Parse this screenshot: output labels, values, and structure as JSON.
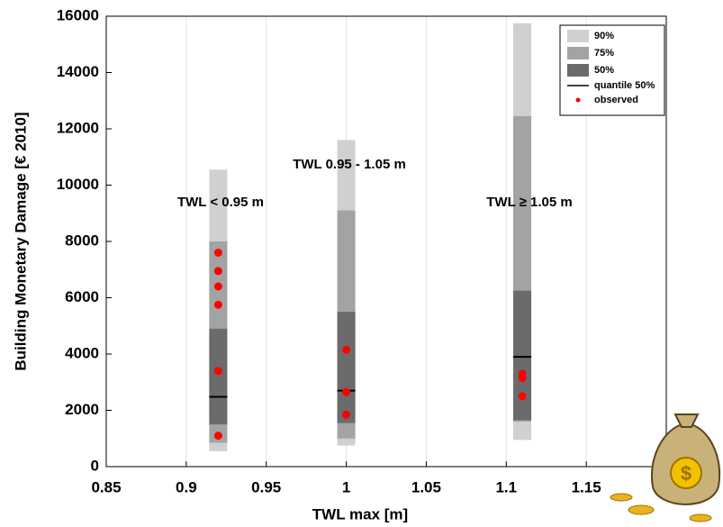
{
  "chart_data": {
    "type": "interval",
    "x_label": "TWL max [m]",
    "y_label": "Building Monetary Damage [€ 2010]",
    "xlim": [
      0.85,
      1.2
    ],
    "ylim": [
      0,
      16000
    ],
    "xticks": [
      0.85,
      0.9,
      0.95,
      1,
      1.05,
      1.1,
      1.15
    ],
    "yticks": [
      0,
      2000,
      4000,
      6000,
      8000,
      10000,
      12000,
      14000,
      16000
    ],
    "grid": "x",
    "legend_position": "upper right",
    "bands": [
      {
        "name": "90%",
        "color": "#d0d0d0"
      },
      {
        "name": "75%",
        "color": "#a3a3a3"
      },
      {
        "name": "50%",
        "color": "#6b6b6b"
      }
    ],
    "median_name": "quantile 50%",
    "median_color": "#000000",
    "observed_name": "observed",
    "observed_color": "#ff0000",
    "annotations": [
      "TWL < 0.95 m",
      "TWL 0.95 - 1.05 m",
      "TWL ≥ 1.05 m"
    ],
    "groups": [
      {
        "x": 0.92,
        "intervals": [
          [
            550,
            10550
          ],
          [
            850,
            8000
          ],
          [
            1500,
            4900
          ]
        ],
        "median": 2480,
        "observed": [
          7600,
          6950,
          6400,
          5750,
          3400,
          1100
        ]
      },
      {
        "x": 1.0,
        "intervals": [
          [
            750,
            11600
          ],
          [
            1000,
            9100
          ],
          [
            1550,
            5500
          ]
        ],
        "median": 2700,
        "observed": [
          4150,
          2650,
          1850
        ]
      },
      {
        "x": 1.11,
        "intervals": [
          [
            950,
            15750
          ],
          [
            1600,
            12450
          ],
          [
            1650,
            6250
          ]
        ],
        "median": 3900,
        "observed": [
          3300,
          3150,
          2500
        ]
      }
    ]
  }
}
